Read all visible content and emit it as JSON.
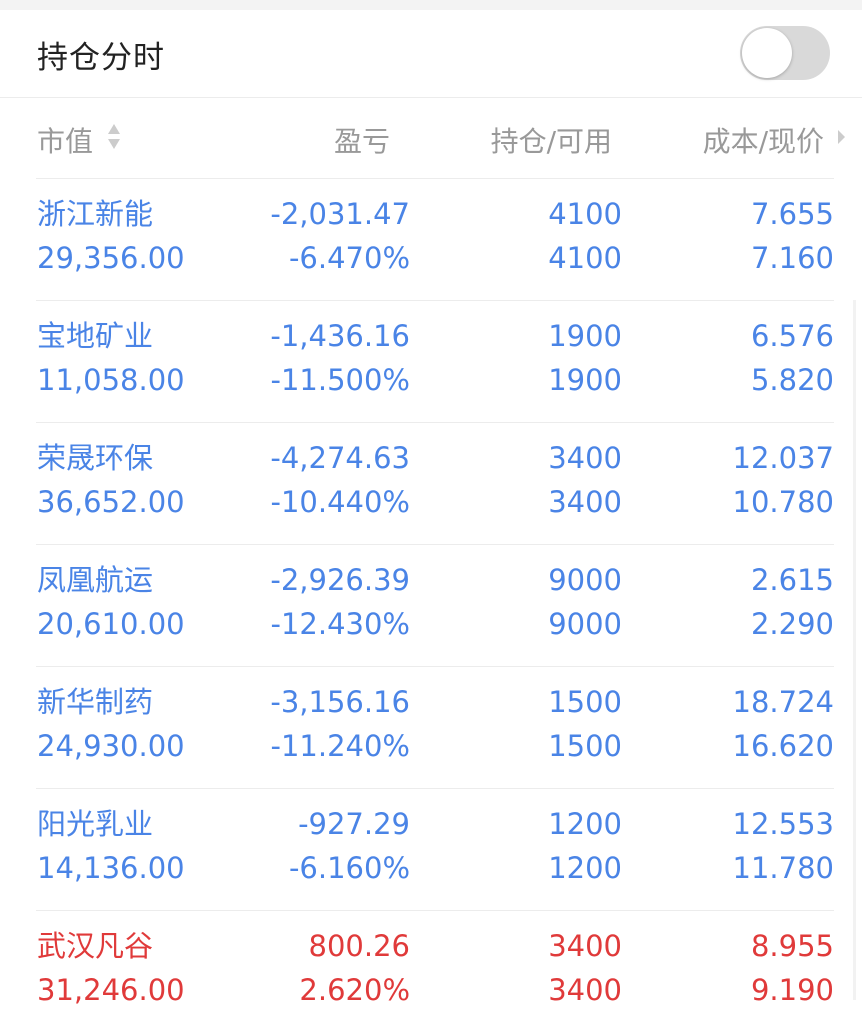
{
  "header": {
    "title": "持仓分时",
    "toggle_on": false
  },
  "columns": {
    "market_value": "市值",
    "pnl": "盈亏",
    "position": "持仓/可用",
    "price": "成本/现价"
  },
  "colors": {
    "loss": "#4a84e6",
    "gain": "#e03a3a"
  },
  "holdings": [
    {
      "name": "浙江新能",
      "market_value": "29,356.00",
      "pnl": "-2,031.47",
      "pnl_pct": "-6.470%",
      "position": "4100",
      "available": "4100",
      "cost": "7.655",
      "price": "7.160",
      "trend": "loss"
    },
    {
      "name": "宝地矿业",
      "market_value": "11,058.00",
      "pnl": "-1,436.16",
      "pnl_pct": "-11.500%",
      "position": "1900",
      "available": "1900",
      "cost": "6.576",
      "price": "5.820",
      "trend": "loss"
    },
    {
      "name": "荣晟环保",
      "market_value": "36,652.00",
      "pnl": "-4,274.63",
      "pnl_pct": "-10.440%",
      "position": "3400",
      "available": "3400",
      "cost": "12.037",
      "price": "10.780",
      "trend": "loss"
    },
    {
      "name": "凤凰航运",
      "market_value": "20,610.00",
      "pnl": "-2,926.39",
      "pnl_pct": "-12.430%",
      "position": "9000",
      "available": "9000",
      "cost": "2.615",
      "price": "2.290",
      "trend": "loss"
    },
    {
      "name": "新华制药",
      "market_value": "24,930.00",
      "pnl": "-3,156.16",
      "pnl_pct": "-11.240%",
      "position": "1500",
      "available": "1500",
      "cost": "18.724",
      "price": "16.620",
      "trend": "loss"
    },
    {
      "name": "阳光乳业",
      "market_value": "14,136.00",
      "pnl": "-927.29",
      "pnl_pct": "-6.160%",
      "position": "1200",
      "available": "1200",
      "cost": "12.553",
      "price": "11.780",
      "trend": "loss"
    },
    {
      "name": "武汉凡谷",
      "market_value": "31,246.00",
      "pnl": "800.26",
      "pnl_pct": "2.620%",
      "position": "3400",
      "available": "3400",
      "cost": "8.955",
      "price": "9.190",
      "trend": "gain"
    }
  ]
}
